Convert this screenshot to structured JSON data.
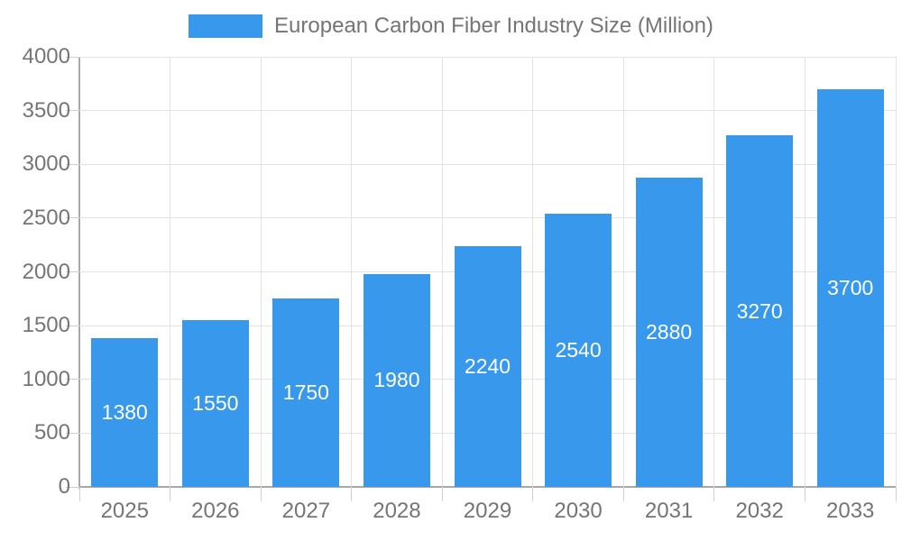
{
  "chart_data": {
    "type": "bar",
    "title": "European Carbon Fiber Industry Size (Million)",
    "legend": {
      "label": "European Carbon Fiber Industry Size (Million)",
      "position": "top-center"
    },
    "categories": [
      "2025",
      "2026",
      "2027",
      "2028",
      "2029",
      "2030",
      "2031",
      "2032",
      "2033"
    ],
    "values": [
      1380,
      1550,
      1750,
      1980,
      2240,
      2540,
      2880,
      3270,
      3700
    ],
    "value_labels_shown": true,
    "xlabel": "",
    "ylabel": "",
    "ylim": [
      0,
      4000
    ],
    "ytick_step": 500,
    "yticks": [
      0,
      500,
      1000,
      1500,
      2000,
      2500,
      3000,
      3500,
      4000
    ],
    "grid": true,
    "colors": {
      "bar": "#3898ec",
      "value_label": "#ffffff",
      "axis_line": "#a8a8a8",
      "gridline": "#e3e3e3",
      "tick": "#cfcfcf",
      "text": "#757575",
      "background": "#ffffff"
    }
  }
}
